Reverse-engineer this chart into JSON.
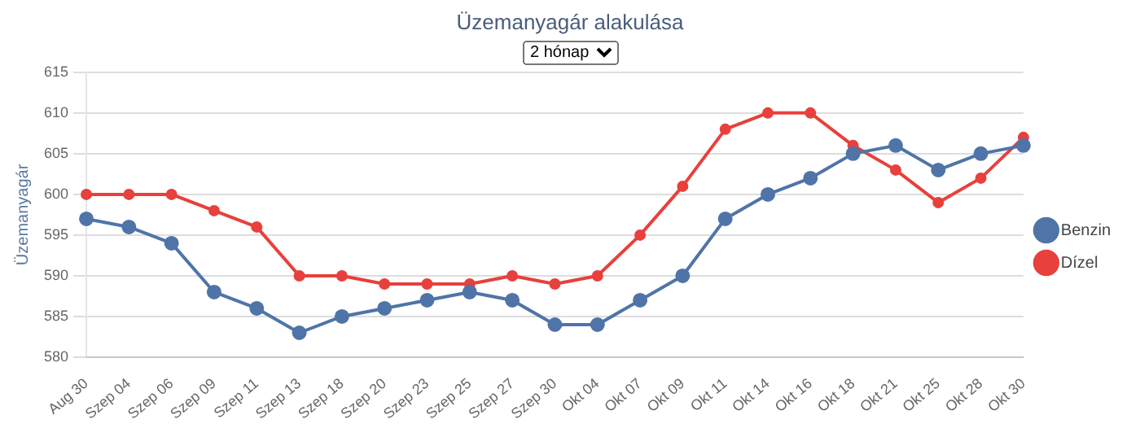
{
  "chart_data": {
    "type": "line",
    "title": "Üzemanyagár alakulása",
    "annotations": [
      "2 hónap"
    ],
    "ylabel": "Üzemanyagár",
    "categories": [
      "Aug 30",
      "Szep 04",
      "Szep 06",
      "Szep 09",
      "Szep 11",
      "Szep 13",
      "Szep 18",
      "Szep 20",
      "Szep 23",
      "Szep 25",
      "Szep 27",
      "Szep 30",
      "Okt 04",
      "Okt 07",
      "Okt 09",
      "Okt 11",
      "Okt 14",
      "Okt 16",
      "Okt 18",
      "Okt 21",
      "Okt 25",
      "Okt 28",
      "Okt 30"
    ],
    "series": [
      {
        "name": "Benzin",
        "color": "#4f74a8",
        "values": [
          597,
          596,
          594,
          588,
          586,
          583,
          585,
          586,
          587,
          588,
          587,
          584,
          584,
          587,
          590,
          597,
          600,
          602,
          605,
          606,
          603,
          605,
          606
        ]
      },
      {
        "name": "Dízel",
        "color": "#e8403c",
        "values": [
          600,
          600,
          600,
          598,
          596,
          590,
          590,
          589,
          589,
          589,
          590,
          589,
          590,
          595,
          601,
          608,
          610,
          610,
          606,
          603,
          599,
          602,
          607
        ]
      }
    ],
    "ylim": [
      580,
      615
    ],
    "yticks": [
      580,
      585,
      590,
      595,
      600,
      605,
      610,
      615
    ],
    "grid": "y",
    "legend": "right",
    "marker": "circle",
    "line_style": "solid"
  }
}
